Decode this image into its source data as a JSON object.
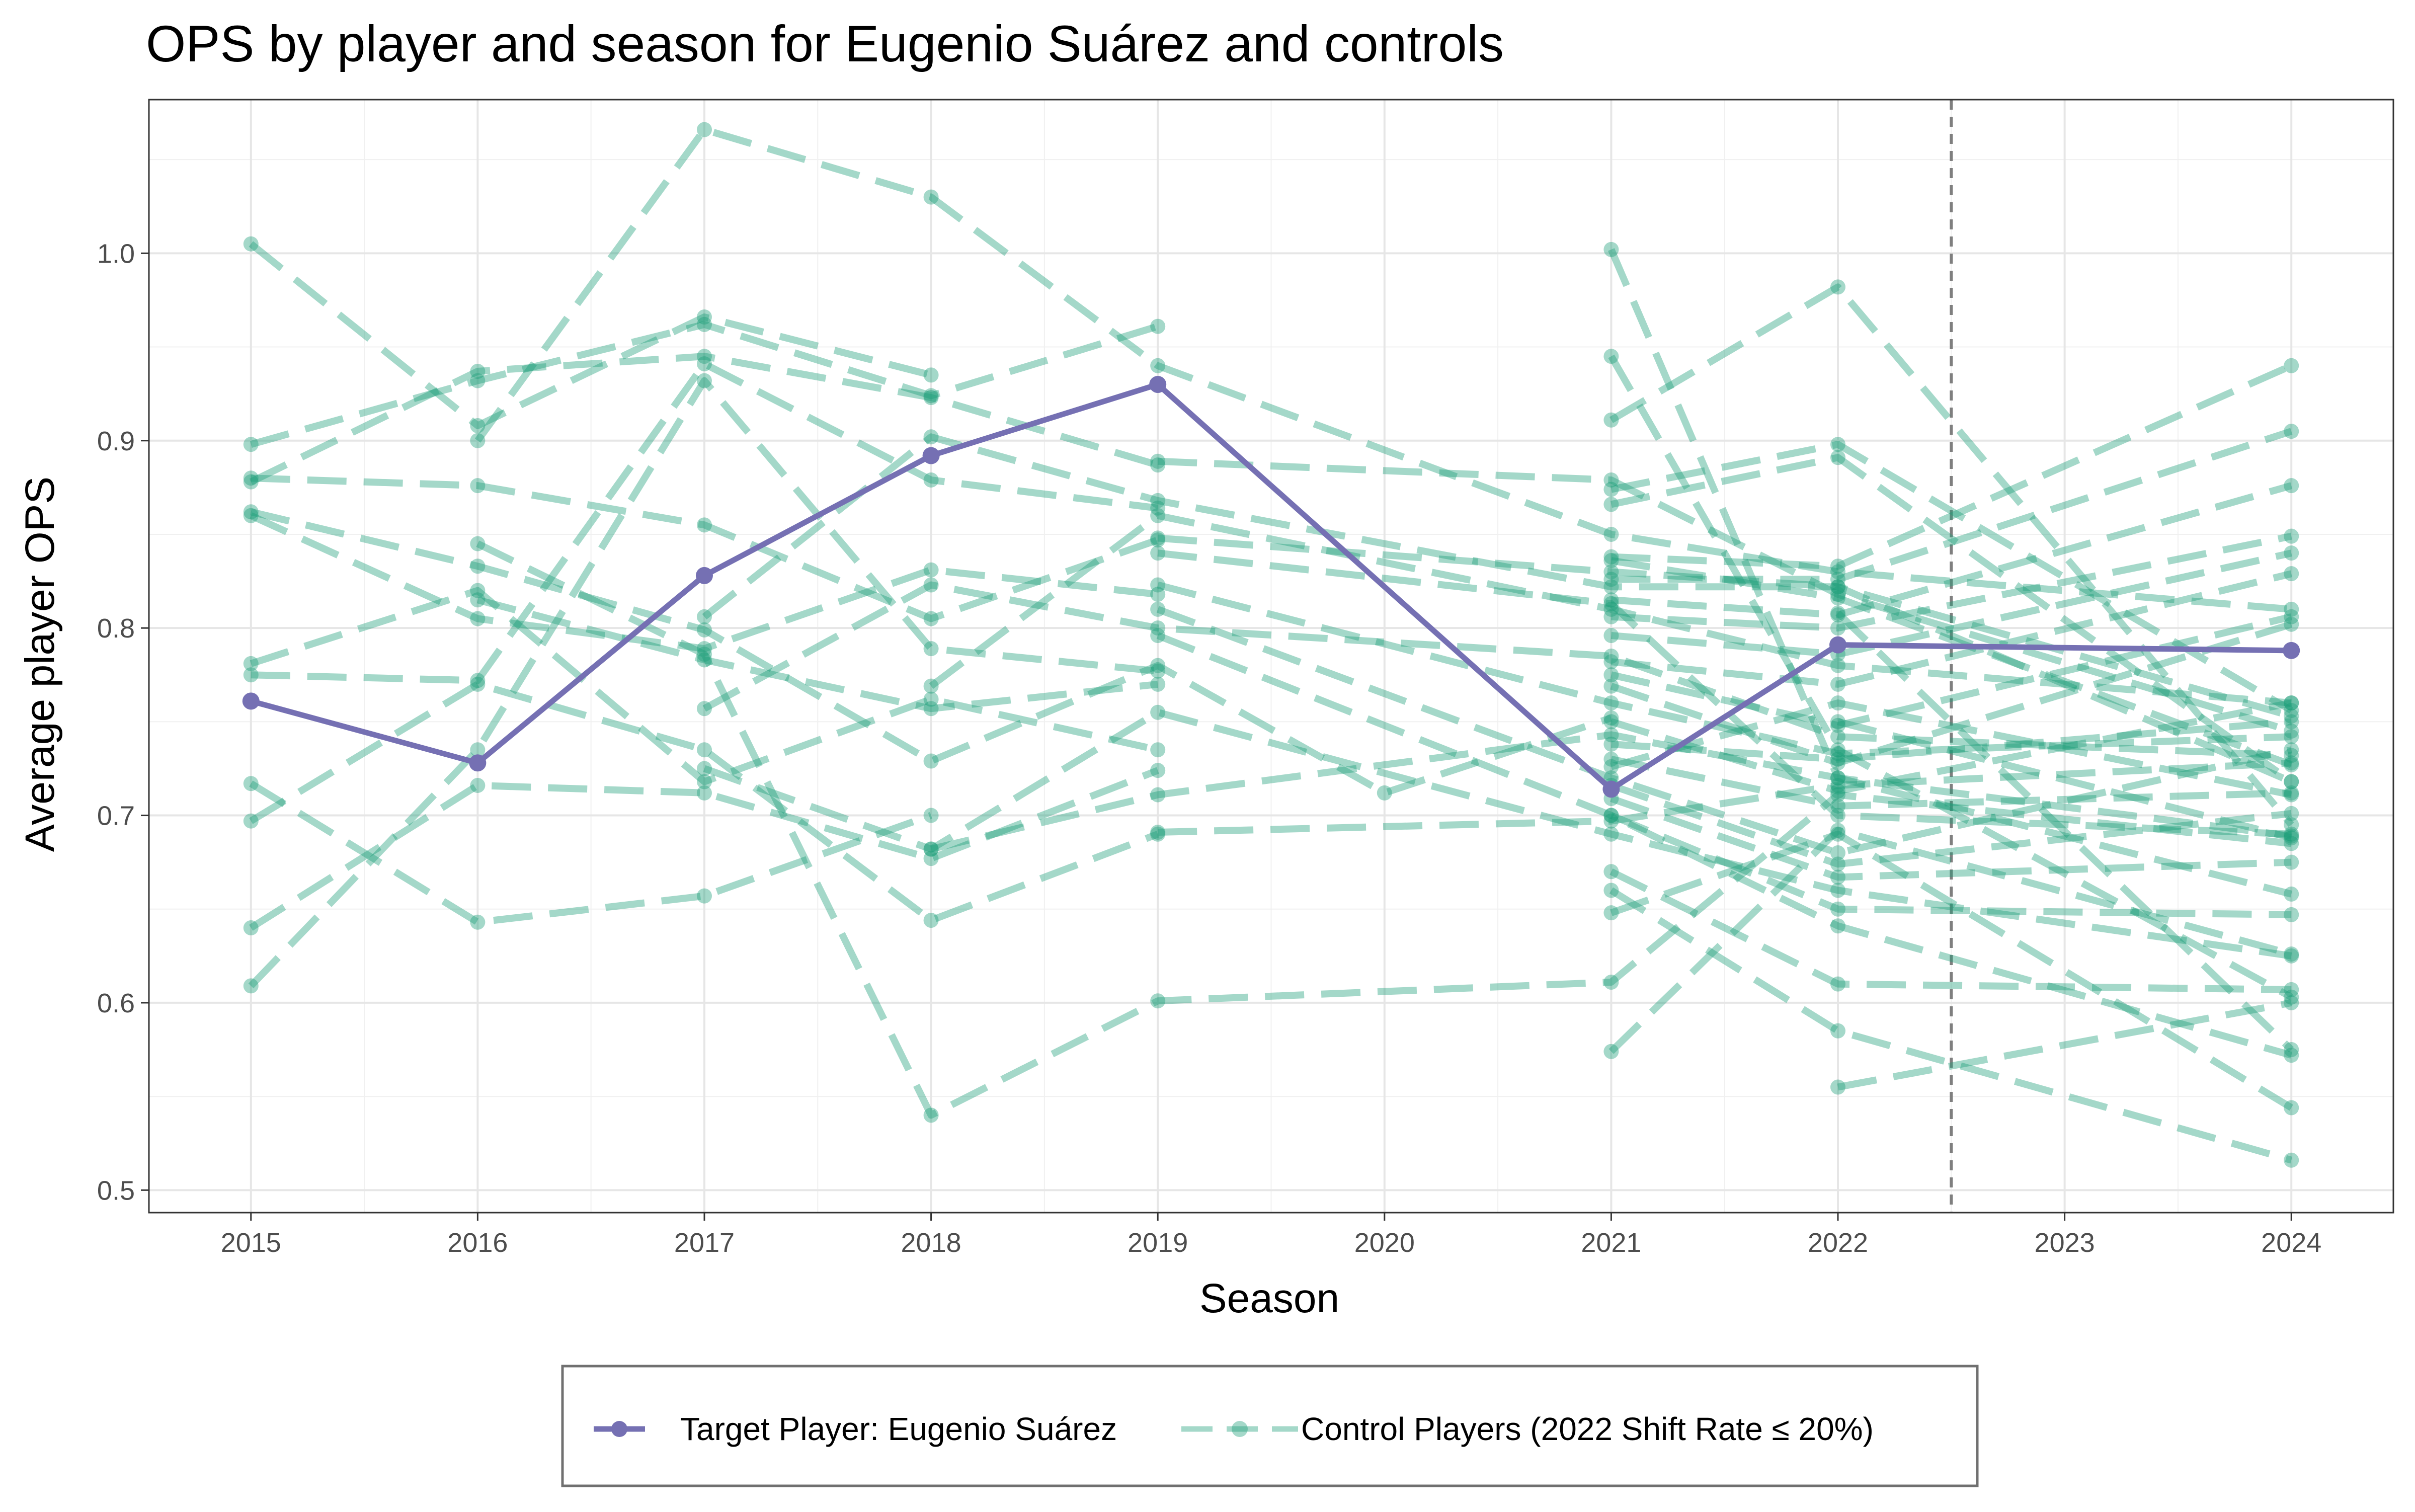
{
  "chart_data": {
    "type": "line",
    "title": "OPS by player and season for Eugenio Suárez and controls",
    "xlabel": "Season",
    "ylabel": "Average player OPS",
    "x_ticks": [
      "2015",
      "2016",
      "2017",
      "2018",
      "2019",
      "2020",
      "2021",
      "2022",
      "2023",
      "2024"
    ],
    "y_ticks": [
      "0.5",
      "0.6",
      "0.7",
      "0.8",
      "0.9",
      "1.0"
    ],
    "xlim": [
      2014.55,
      2024.45
    ],
    "ylim": [
      0.488,
      1.082
    ],
    "grid": true,
    "legend_position": "bottom",
    "reference_line": {
      "x": 2022.5,
      "style": "dashed",
      "color": "#7f7f7f"
    },
    "colors": {
      "target": "#7570b3",
      "control": "#1b9e77"
    },
    "target": {
      "name": "Target Player: Eugenio Suárez",
      "x": [
        2015,
        2016,
        2017,
        2018,
        2019,
        2021,
        2022,
        2024
      ],
      "y": [
        0.761,
        0.728,
        0.828,
        0.892,
        0.93,
        0.714,
        0.791,
        0.788
      ]
    },
    "control_legend_label": "Control Players (2022 Shift Rate ≤ 20%)",
    "control_series": [
      {
        "x": [
          2015,
          2016,
          2017,
          2018
        ],
        "y": [
          1.005,
          0.908,
          0.966,
          0.935
        ]
      },
      {
        "x": [
          2015,
          2016,
          2017,
          2018,
          2019
        ],
        "y": [
          0.898,
          0.932,
          0.962,
          0.924,
          0.961
        ]
      },
      {
        "x": [
          2015,
          2016,
          2017,
          2018,
          2019
        ],
        "y": [
          0.88,
          0.876,
          0.855,
          0.805,
          0.847
        ]
      },
      {
        "x": [
          2015,
          2016,
          2017,
          2018,
          2019
        ],
        "y": [
          0.878,
          0.937,
          0.945,
          0.923,
          0.887
        ]
      },
      {
        "x": [
          2015,
          2016,
          2017,
          2018,
          2019,
          2020,
          2021
        ],
        "y": [
          0.862,
          0.833,
          0.799,
          0.729,
          0.78,
          0.712,
          0.752
        ]
      },
      {
        "x": [
          2015,
          2016,
          2017,
          2018,
          2019
        ],
        "y": [
          0.86,
          0.805,
          0.789,
          0.831,
          0.818
        ]
      },
      {
        "x": [
          2015,
          2016,
          2017,
          2018,
          2019
        ],
        "y": [
          0.781,
          0.82,
          0.718,
          0.762,
          0.735
        ]
      },
      {
        "x": [
          2015,
          2016,
          2017,
          2018,
          2019
        ],
        "y": [
          0.775,
          0.772,
          0.941,
          0.879,
          0.864
        ]
      },
      {
        "x": [
          2015,
          2016,
          2017,
          2018
        ],
        "y": [
          0.717,
          0.643,
          0.657,
          0.7
        ]
      },
      {
        "x": [
          2015,
          2016,
          2017,
          2018,
          2019
        ],
        "y": [
          0.697,
          0.77,
          0.735,
          0.644,
          0.69
        ]
      },
      {
        "x": [
          2015,
          2016,
          2017,
          2018,
          2019
        ],
        "y": [
          0.64,
          0.716,
          0.712,
          0.677,
          0.724
        ]
      },
      {
        "x": [
          2015,
          2016,
          2017,
          2018,
          2019
        ],
        "y": [
          0.609,
          0.735,
          0.932,
          0.789,
          0.777
        ]
      },
      {
        "x": [
          2016,
          2017,
          2018,
          2019,
          2021,
          2022,
          2024
        ],
        "y": [
          0.845,
          0.786,
          0.54,
          0.601,
          0.611,
          0.711,
          0.685
        ]
      },
      {
        "x": [
          2016,
          2017,
          2018,
          2019,
          2021,
          2022,
          2024
        ],
        "y": [
          0.9,
          1.066,
          1.03,
          0.94,
          0.85,
          0.83,
          0.81
        ]
      },
      {
        "x": [
          2016,
          2017,
          2018,
          2019
        ],
        "y": [
          0.815,
          0.783,
          0.757,
          0.77
        ]
      },
      {
        "x": [
          2017,
          2018,
          2019,
          2021,
          2022,
          2024
        ],
        "y": [
          0.806,
          0.902,
          0.868,
          0.822,
          0.822,
          0.753
        ]
      },
      {
        "x": [
          2017,
          2018,
          2019,
          2021,
          2022,
          2024
        ],
        "y": [
          0.757,
          0.823,
          0.8,
          0.785,
          0.742,
          0.732
        ]
      },
      {
        "x": [
          2017,
          2018,
          2019,
          2021,
          2022,
          2024
        ],
        "y": [
          0.725,
          0.682,
          0.755,
          0.69,
          0.66,
          0.625
        ]
      },
      {
        "x": [
          2018,
          2019,
          2021,
          2022,
          2024
        ],
        "y": [
          0.769,
          0.86,
          0.81,
          0.78,
          0.76
        ]
      },
      {
        "x": [
          2018,
          2019,
          2021,
          2022,
          2024
        ],
        "y": [
          0.682,
          0.711,
          0.743,
          0.72,
          0.689
        ]
      },
      {
        "x": [
          2019,
          2021,
          2022,
          2024
        ],
        "y": [
          0.889,
          0.879,
          0.818,
          0.745
        ]
      },
      {
        "x": [
          2019,
          2021,
          2022,
          2024
        ],
        "y": [
          0.848,
          0.83,
          0.822,
          0.718
        ]
      },
      {
        "x": [
          2019,
          2021,
          2022,
          2024
        ],
        "y": [
          0.84,
          0.813,
          0.7,
          0.69
        ]
      },
      {
        "x": [
          2019,
          2021,
          2022,
          2024
        ],
        "y": [
          0.823,
          0.76,
          0.733,
          0.742
        ]
      },
      {
        "x": [
          2019,
          2021,
          2022,
          2024
        ],
        "y": [
          0.81,
          0.72,
          0.68,
          0.735
        ]
      },
      {
        "x": [
          2019,
          2021,
          2022,
          2024
        ],
        "y": [
          0.796,
          0.7,
          0.641,
          0.572
        ]
      },
      {
        "x": [
          2019,
          2021,
          2022,
          2024
        ],
        "y": [
          0.691,
          0.697,
          0.716,
          0.728
        ]
      },
      {
        "x": [
          2021,
          2022,
          2024
        ],
        "y": [
          1.002,
          0.72,
          0.658
        ]
      },
      {
        "x": [
          2021,
          2022,
          2024
        ],
        "y": [
          0.945,
          0.735,
          0.603
        ]
      },
      {
        "x": [
          2021,
          2022,
          2024
        ],
        "y": [
          0.911,
          0.982,
          0.695
        ]
      },
      {
        "x": [
          2021,
          2022,
          2024
        ],
        "y": [
          0.874,
          0.898,
          0.756
        ]
      },
      {
        "x": [
          2021,
          2022,
          2024
        ],
        "y": [
          0.866,
          0.891,
          0.718
        ]
      },
      {
        "x": [
          2021,
          2022,
          2024
        ],
        "y": [
          0.838,
          0.833,
          0.94
        ]
      },
      {
        "x": [
          2021,
          2022,
          2024
        ],
        "y": [
          0.836,
          0.816,
          0.727
        ]
      },
      {
        "x": [
          2021,
          2022,
          2024
        ],
        "y": [
          0.826,
          0.826,
          0.905
        ]
      },
      {
        "x": [
          2021,
          2022,
          2024
        ],
        "y": [
          0.815,
          0.807,
          0.876
        ]
      },
      {
        "x": [
          2021,
          2022,
          2024
        ],
        "y": [
          0.806,
          0.8,
          0.849
        ]
      },
      {
        "x": [
          2021,
          2022,
          2024
        ],
        "y": [
          0.796,
          0.786,
          0.84
        ]
      },
      {
        "x": [
          2021,
          2022,
          2024
        ],
        "y": [
          0.782,
          0.77,
          0.829
        ]
      },
      {
        "x": [
          2021,
          2022,
          2024
        ],
        "y": [
          0.775,
          0.748,
          0.806
        ]
      },
      {
        "x": [
          2021,
          2022,
          2024
        ],
        "y": [
          0.769,
          0.728,
          0.802
        ]
      },
      {
        "x": [
          2021,
          2022,
          2024
        ],
        "y": [
          0.75,
          0.713,
          0.76
        ]
      },
      {
        "x": [
          2021,
          2022,
          2024
        ],
        "y": [
          0.738,
          0.73,
          0.75
        ]
      },
      {
        "x": [
          2021,
          2022,
          2024
        ],
        "y": [
          0.73,
          0.705,
          0.712
        ]
      },
      {
        "x": [
          2021,
          2022,
          2024
        ],
        "y": [
          0.726,
          0.76,
          0.711
        ]
      },
      {
        "x": [
          2021,
          2022,
          2024
        ],
        "y": [
          0.716,
          0.674,
          0.701
        ]
      },
      {
        "x": [
          2021,
          2022,
          2024
        ],
        "y": [
          0.709,
          0.667,
          0.675
        ]
      },
      {
        "x": [
          2021,
          2022,
          2024
        ],
        "y": [
          0.7,
          0.65,
          0.647
        ]
      },
      {
        "x": [
          2021,
          2022,
          2024
        ],
        "y": [
          0.67,
          0.61,
          0.607
        ]
      },
      {
        "x": [
          2021,
          2022,
          2024
        ],
        "y": [
          0.66,
          0.585,
          0.516
        ]
      },
      {
        "x": [
          2021,
          2022,
          2024
        ],
        "y": [
          0.648,
          0.69,
          0.544
        ]
      },
      {
        "x": [
          2021,
          2022,
          2024
        ],
        "y": [
          0.574,
          0.692,
          0.626
        ]
      },
      {
        "x": [
          2022,
          2024
        ],
        "y": [
          0.555,
          0.6
        ]
      },
      {
        "x": [
          2022,
          2024
        ],
        "y": [
          0.808,
          0.575
        ]
      },
      {
        "x": [
          2022,
          2024
        ],
        "y": [
          0.75,
          0.688
        ]
      }
    ]
  }
}
